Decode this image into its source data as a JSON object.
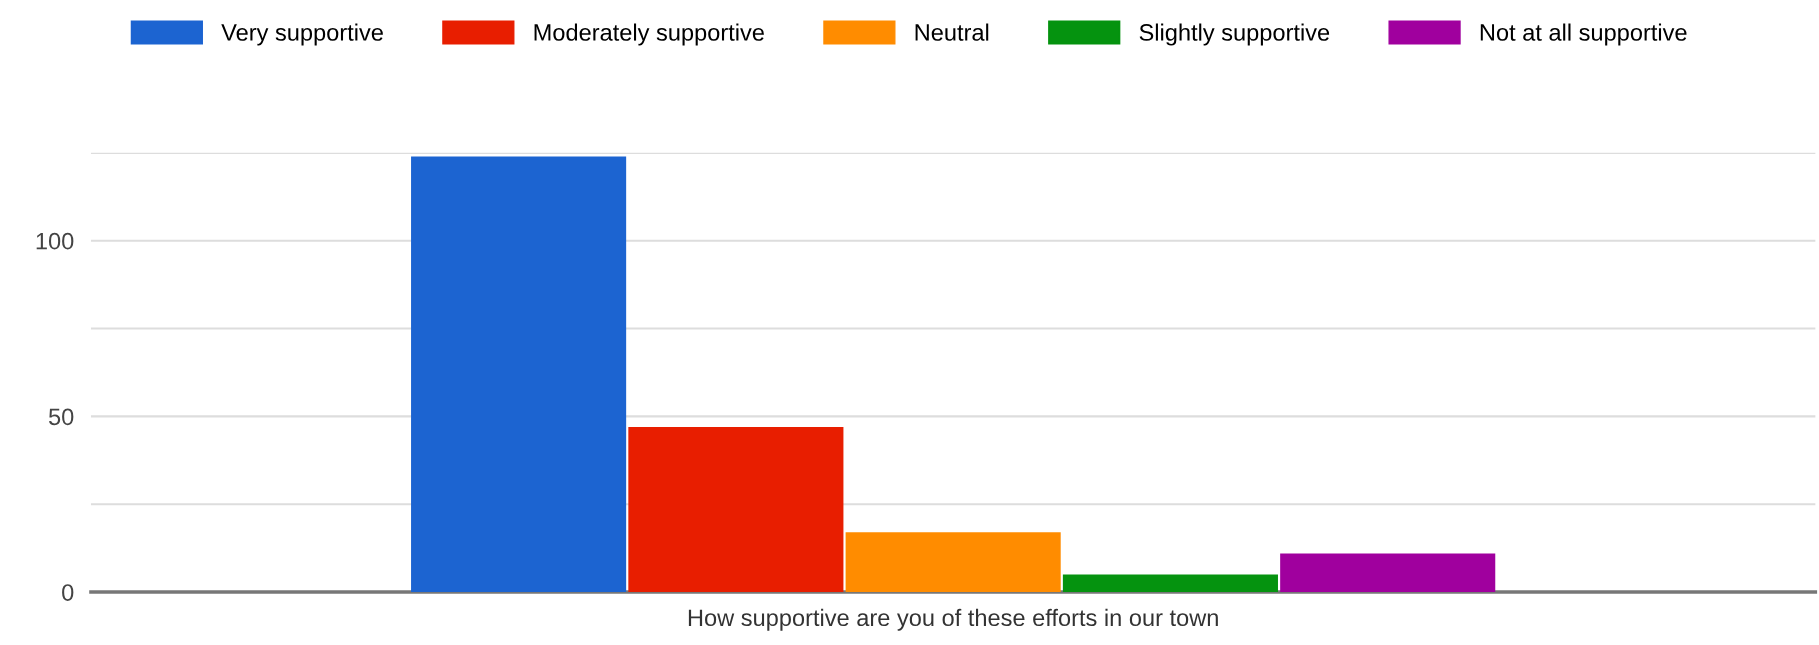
{
  "chart_data": {
    "type": "bar",
    "categories": [
      "How supportive are you of these efforts in our town"
    ],
    "series": [
      {
        "name": "Very supportive",
        "color": "#1c64d1",
        "values": [
          124
        ]
      },
      {
        "name": "Moderately supportive",
        "color": "#e81e00",
        "values": [
          47
        ]
      },
      {
        "name": "Neutral",
        "color": "#ff8c00",
        "values": [
          17
        ]
      },
      {
        "name": "Slightly supportive",
        "color": "#05930f",
        "values": [
          5
        ]
      },
      {
        "name": "Not at all supportive",
        "color": "#a0009e",
        "values": [
          11
        ]
      }
    ],
    "ylim": [
      0,
      125
    ],
    "yticks": [
      0,
      {
        "value": 25,
        "label": null
      },
      50,
      {
        "value": 75,
        "label": null
      },
      100,
      {
        "value": 125,
        "label": null
      }
    ],
    "grid": "y",
    "legend": "top"
  }
}
